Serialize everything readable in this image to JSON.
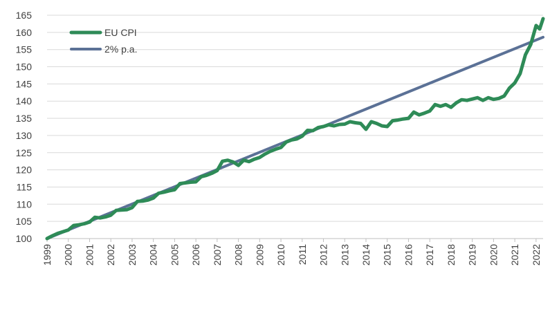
{
  "chart_data": {
    "type": "line",
    "ylim": [
      100,
      165
    ],
    "yticks": [
      100,
      105,
      110,
      115,
      120,
      125,
      130,
      135,
      140,
      145,
      150,
      155,
      160,
      165
    ],
    "xlim": [
      1999.0,
      2022.33
    ],
    "xticks": [
      "1999",
      "2000",
      "2001",
      "2002",
      "2003",
      "2004",
      "2005",
      "2006",
      "2007",
      "2008",
      "2009",
      "2010",
      "2011",
      "2012",
      "2013",
      "2014",
      "2015",
      "2016",
      "2017",
      "2018",
      "2019",
      "2020",
      "2021",
      "2022"
    ],
    "grid": true,
    "legend": "top-left",
    "series": [
      {
        "name": "EU CPI",
        "color": "#2e8b57",
        "x": [
          1999.0,
          1999.25,
          1999.5,
          1999.75,
          2000.0,
          2000.25,
          2000.5,
          2000.75,
          2001.0,
          2001.25,
          2001.5,
          2001.75,
          2002.0,
          2002.25,
          2002.5,
          2002.75,
          2003.0,
          2003.25,
          2003.5,
          2003.75,
          2004.0,
          2004.25,
          2004.5,
          2004.75,
          2005.0,
          2005.25,
          2005.5,
          2005.75,
          2006.0,
          2006.25,
          2006.5,
          2006.75,
          2007.0,
          2007.25,
          2007.5,
          2007.75,
          2008.0,
          2008.25,
          2008.5,
          2008.75,
          2009.0,
          2009.25,
          2009.5,
          2009.75,
          2010.0,
          2010.25,
          2010.5,
          2010.75,
          2011.0,
          2011.25,
          2011.5,
          2011.75,
          2012.0,
          2012.25,
          2012.5,
          2012.75,
          2013.0,
          2013.25,
          2013.5,
          2013.75,
          2014.0,
          2014.25,
          2014.5,
          2014.75,
          2015.0,
          2015.25,
          2015.5,
          2015.75,
          2016.0,
          2016.25,
          2016.5,
          2016.75,
          2017.0,
          2017.25,
          2017.5,
          2017.75,
          2018.0,
          2018.25,
          2018.5,
          2018.75,
          2019.0,
          2019.25,
          2019.5,
          2019.75,
          2020.0,
          2020.25,
          2020.5,
          2020.75,
          2021.0,
          2021.25,
          2021.5,
          2021.75,
          2022.0,
          2022.17,
          2022.33
        ],
        "values": [
          100.0,
          100.8,
          101.5,
          102.0,
          102.5,
          103.8,
          104.0,
          104.3,
          104.8,
          106.2,
          106.0,
          106.3,
          106.8,
          108.2,
          108.3,
          108.4,
          109.0,
          110.8,
          110.9,
          111.2,
          111.8,
          113.2,
          113.5,
          113.9,
          114.2,
          116.0,
          116.2,
          116.4,
          116.5,
          118.0,
          118.4,
          119.0,
          119.8,
          122.5,
          122.8,
          122.3,
          121.3,
          122.8,
          122.4,
          123.1,
          123.6,
          124.6,
          125.4,
          126.0,
          126.5,
          128.1,
          128.7,
          129.0,
          129.8,
          131.5,
          131.4,
          132.3,
          132.6,
          133.1,
          132.8,
          133.2,
          133.3,
          134.0,
          133.7,
          133.5,
          131.8,
          134.0,
          133.5,
          132.8,
          132.6,
          134.3,
          134.5,
          134.8,
          135.0,
          136.8,
          136.0,
          136.5,
          137.1,
          139.0,
          138.5,
          139.0,
          138.2,
          139.5,
          140.4,
          140.2,
          140.6,
          141.0,
          140.2,
          141.0,
          140.5,
          140.8,
          141.5,
          143.8,
          145.3,
          148.0,
          153.5,
          156.5,
          162.0,
          161.0,
          164.0
        ]
      },
      {
        "name": "2% p.a.",
        "color": "#5b7196",
        "x": [
          1999.0,
          2022.33
        ],
        "values": [
          100.0,
          158.6
        ]
      }
    ]
  }
}
